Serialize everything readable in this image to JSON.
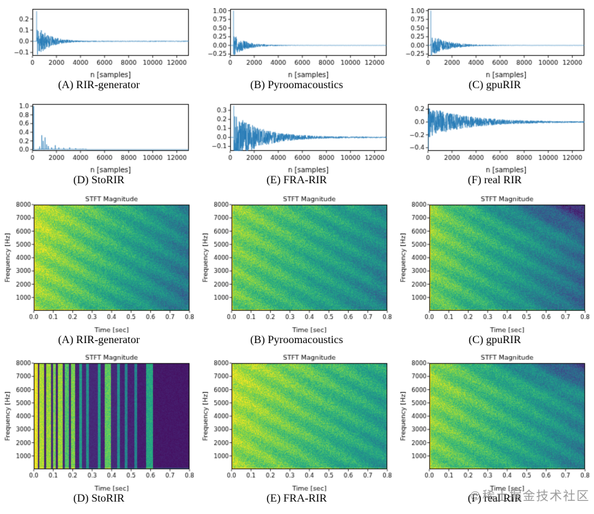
{
  "figure": {
    "background": "#ffffff"
  },
  "watermark": {
    "icon": "©",
    "text": "稀土掘金技术社区"
  },
  "chart_data": [
    {
      "type": "line",
      "kind": "waveform",
      "caption": "(A) RIR-generator",
      "xlabel": "n [samples]",
      "xlim": [
        0,
        13000
      ],
      "xticks": [
        0,
        2000,
        4000,
        6000,
        8000,
        10000,
        12000
      ],
      "xtick_labels": [
        "0",
        "2000",
        "4000",
        "6000",
        "8000",
        "10000",
        "12000"
      ],
      "ylim": [
        -0.13,
        0.29
      ],
      "yticks": [
        -0.1,
        0.0,
        0.1,
        0.2
      ],
      "ytick_labels": [
        "−0.1",
        "0.0",
        "0.1",
        "0.2"
      ],
      "line_color": "#1f77b4",
      "signal": {
        "onset": 350,
        "spike": 0.27,
        "noise_amp": 0.15,
        "tau": 1000,
        "seed": 11
      }
    },
    {
      "type": "line",
      "kind": "waveform",
      "caption": "(B) Pyroomacoustics",
      "xlabel": "n [samples]",
      "xlim": [
        0,
        13000
      ],
      "xticks": [
        0,
        2000,
        4000,
        6000,
        8000,
        10000,
        12000
      ],
      "xtick_labels": [
        "0",
        "2000",
        "4000",
        "6000",
        "8000",
        "10000",
        "12000"
      ],
      "ylim": [
        -0.3,
        1.05
      ],
      "yticks": [
        -0.25,
        0.0,
        0.25,
        0.5,
        0.75,
        1.0
      ],
      "ytick_labels": [
        "−0.25",
        "0.00",
        "0.25",
        "0.50",
        "0.75",
        "1.00"
      ],
      "line_color": "#1f77b4",
      "signal": {
        "onset": 280,
        "spike": 1.0,
        "noise_amp": 0.3,
        "tau": 1100,
        "seed": 12
      }
    },
    {
      "type": "line",
      "kind": "waveform",
      "caption": "(C) gpuRIR",
      "xlabel": "n [samples]",
      "xlim": [
        0,
        13000
      ],
      "xticks": [
        0,
        2000,
        4000,
        6000,
        8000,
        10000,
        12000
      ],
      "xtick_labels": [
        "0",
        "2000",
        "4000",
        "6000",
        "8000",
        "10000",
        "12000"
      ],
      "ylim": [
        -0.3,
        1.05
      ],
      "yticks": [
        -0.25,
        0.0,
        0.25,
        0.5,
        0.75,
        1.0
      ],
      "ytick_labels": [
        "−0.25",
        "0.00",
        "0.25",
        "0.50",
        "0.75",
        "1.00"
      ],
      "line_color": "#1f77b4",
      "signal": {
        "onset": 240,
        "spike": 1.0,
        "noise_amp": 0.32,
        "tau": 1400,
        "seed": 13
      }
    },
    {
      "type": "line",
      "kind": "waveform",
      "caption": "(D) StoRIR",
      "xlabel": "n [samples]",
      "xlim": [
        0,
        13000
      ],
      "xticks": [
        0,
        2000,
        4000,
        6000,
        8000,
        10000,
        12000
      ],
      "xtick_labels": [
        "0",
        "2000",
        "4000",
        "6000",
        "8000",
        "10000",
        "12000"
      ],
      "ylim": [
        -0.03,
        1.05
      ],
      "yticks": [
        0.0,
        0.2,
        0.4,
        0.6,
        0.8,
        1.0
      ],
      "ytick_labels": [
        "0.0",
        "0.2",
        "0.4",
        "0.6",
        "0.8",
        "1.0"
      ],
      "line_color": "#1f77b4",
      "signal": {
        "seed": 14,
        "spikes": [
          [
            110,
            1.0
          ],
          [
            600,
            0.07
          ],
          [
            780,
            0.33
          ],
          [
            900,
            0.2
          ],
          [
            1050,
            0.28
          ],
          [
            1180,
            0.12
          ],
          [
            1320,
            0.08
          ],
          [
            1600,
            0.05
          ],
          [
            1900,
            0.1
          ],
          [
            2200,
            0.05
          ],
          [
            2600,
            0.04
          ],
          [
            3100,
            0.05
          ],
          [
            3600,
            0.03
          ],
          [
            4200,
            0.02
          ]
        ]
      }
    },
    {
      "type": "line",
      "kind": "waveform",
      "caption": "(E) FRA-RIR",
      "xlabel": "n [samples]",
      "xlim": [
        0,
        13000
      ],
      "xticks": [
        0,
        2000,
        4000,
        6000,
        8000,
        10000,
        12000
      ],
      "xtick_labels": [
        "0",
        "2000",
        "4000",
        "6000",
        "8000",
        "10000",
        "12000"
      ],
      "ylim": [
        -0.15,
        0.37
      ],
      "yticks": [
        -0.1,
        0.0,
        0.1,
        0.2,
        0.3
      ],
      "ytick_labels": [
        "−0.1",
        "0.0",
        "0.1",
        "0.2",
        "0.3"
      ],
      "line_color": "#1f77b4",
      "signal": {
        "onset": 300,
        "spike": 0.35,
        "noise_amp": 0.27,
        "tau": 2200,
        "floor": 0.005,
        "seed": 15
      }
    },
    {
      "type": "line",
      "kind": "waveform",
      "caption": "(F) real RIR",
      "xlabel": "n [samples]",
      "xlim": [
        0,
        13000
      ],
      "xticks": [
        0,
        2000,
        4000,
        6000,
        8000,
        10000,
        12000
      ],
      "xtick_labels": [
        "0",
        "2000",
        "4000",
        "6000",
        "8000",
        "10000",
        "12000"
      ],
      "ylim": [
        -0.45,
        0.28
      ],
      "yticks": [
        -0.4,
        -0.2,
        0.0,
        0.2
      ],
      "ytick_labels": [
        "−0.4",
        "−0.2",
        "0.0",
        "0.2"
      ],
      "line_color": "#1f77b4",
      "signal": {
        "onset": 20,
        "spike": -0.43,
        "spike_n": 40,
        "noise_amp": 0.24,
        "tau": 3200,
        "floor": 0.006,
        "seed": 16
      }
    },
    {
      "type": "heatmap",
      "kind": "spectrogram",
      "caption": "(A) RIR-generator",
      "title": "STFT Magnitude",
      "xlabel": "Time [sec]",
      "ylabel": "Frequency [Hz]",
      "xlim": [
        0,
        0.8
      ],
      "ylim": [
        0,
        8000
      ],
      "xticks": [
        0,
        0.1,
        0.2,
        0.3,
        0.4,
        0.5,
        0.6,
        0.7,
        0.8
      ],
      "xtick_labels": [
        "0.0",
        "0.1",
        "0.2",
        "0.3",
        "0.4",
        "0.5",
        "0.6",
        "0.7",
        "0.8"
      ],
      "yticks": [
        1000,
        2000,
        3000,
        4000,
        5000,
        6000,
        7000,
        8000
      ],
      "ytick_labels": [
        "1000",
        "2000",
        "3000",
        "4000",
        "5000",
        "6000",
        "7000",
        "8000"
      ],
      "heat": {
        "style": "decay",
        "colormap": "viridis",
        "base_left": 0.88,
        "base_right": 0.4,
        "seed": 101
      }
    },
    {
      "type": "heatmap",
      "kind": "spectrogram",
      "caption": "(B) Pyroomacoustics",
      "title": "STFT Magnitude",
      "xlabel": "Time [sec]",
      "ylabel": "Frequency [Hz]",
      "xlim": [
        0,
        0.8
      ],
      "ylim": [
        0,
        8000
      ],
      "xticks": [
        0,
        0.1,
        0.2,
        0.3,
        0.4,
        0.5,
        0.6,
        0.7,
        0.8
      ],
      "xtick_labels": [
        "0.0",
        "0.1",
        "0.2",
        "0.3",
        "0.4",
        "0.5",
        "0.6",
        "0.7",
        "0.8"
      ],
      "yticks": [
        1000,
        2000,
        3000,
        4000,
        5000,
        6000,
        7000,
        8000
      ],
      "ytick_labels": [
        "1000",
        "2000",
        "3000",
        "4000",
        "5000",
        "6000",
        "7000",
        "8000"
      ],
      "heat": {
        "style": "decay",
        "colormap": "viridis",
        "base_left": 0.8,
        "base_right": 0.45,
        "seed": 102
      }
    },
    {
      "type": "heatmap",
      "kind": "spectrogram",
      "caption": "(C) gpuRIR",
      "title": "STFT Magnitude",
      "xlabel": "Time [sec]",
      "ylabel": "Frequency [Hz]",
      "xlim": [
        0,
        0.8
      ],
      "ylim": [
        0,
        8000
      ],
      "xticks": [
        0,
        0.1,
        0.2,
        0.3,
        0.4,
        0.5,
        0.6,
        0.7,
        0.8
      ],
      "xtick_labels": [
        "0.0",
        "0.1",
        "0.2",
        "0.3",
        "0.4",
        "0.5",
        "0.6",
        "0.7",
        "0.8"
      ],
      "yticks": [
        1000,
        2000,
        3000,
        4000,
        5000,
        6000,
        7000,
        8000
      ],
      "ytick_labels": [
        "1000",
        "2000",
        "3000",
        "4000",
        "5000",
        "6000",
        "7000",
        "8000"
      ],
      "heat": {
        "style": "decay",
        "colormap": "viridis",
        "base_left": 0.8,
        "base_right": 0.35,
        "top_dark": true,
        "seed": 103
      }
    },
    {
      "type": "heatmap",
      "kind": "spectrogram",
      "caption": "(D) StoRIR",
      "title": "STFT Magnitude",
      "xlabel": "Time [sec]",
      "ylabel": "Frequency [Hz]",
      "xlim": [
        0,
        0.8
      ],
      "ylim": [
        0,
        8000
      ],
      "xticks": [
        0,
        0.1,
        0.2,
        0.3,
        0.4,
        0.5,
        0.6,
        0.7,
        0.8
      ],
      "xtick_labels": [
        "0.0",
        "0.1",
        "0.2",
        "0.3",
        "0.4",
        "0.5",
        "0.6",
        "0.7",
        "0.8"
      ],
      "yticks": [
        1000,
        2000,
        3000,
        4000,
        5000,
        6000,
        7000,
        8000
      ],
      "ytick_labels": [
        "1000",
        "2000",
        "3000",
        "4000",
        "5000",
        "6000",
        "7000",
        "8000"
      ],
      "heat": {
        "style": "stripes",
        "colormap": "viridis",
        "seed": 104,
        "stripes": [
          [
            0.0,
            0.018,
            0.97
          ],
          [
            0.018,
            0.028,
            0.1
          ],
          [
            0.028,
            0.052,
            0.88
          ],
          [
            0.052,
            0.062,
            0.1
          ],
          [
            0.062,
            0.088,
            0.85
          ],
          [
            0.088,
            0.098,
            0.12
          ],
          [
            0.098,
            0.112,
            0.8
          ],
          [
            0.112,
            0.122,
            0.1
          ],
          [
            0.122,
            0.148,
            0.85
          ],
          [
            0.148,
            0.158,
            0.1
          ],
          [
            0.158,
            0.178,
            0.72
          ],
          [
            0.178,
            0.192,
            0.1
          ],
          [
            0.192,
            0.213,
            0.8
          ],
          [
            0.213,
            0.232,
            0.1
          ],
          [
            0.232,
            0.248,
            0.55
          ],
          [
            0.248,
            0.268,
            0.12
          ],
          [
            0.268,
            0.283,
            0.5
          ],
          [
            0.283,
            0.328,
            0.12
          ],
          [
            0.328,
            0.343,
            0.55
          ],
          [
            0.343,
            0.363,
            0.1
          ],
          [
            0.363,
            0.395,
            0.75
          ],
          [
            0.395,
            0.428,
            0.12
          ],
          [
            0.428,
            0.443,
            0.5
          ],
          [
            0.443,
            0.468,
            0.1
          ],
          [
            0.468,
            0.483,
            0.45
          ],
          [
            0.483,
            0.518,
            0.1
          ],
          [
            0.518,
            0.533,
            0.45
          ],
          [
            0.533,
            0.578,
            0.08
          ],
          [
            0.578,
            0.615,
            0.6
          ],
          [
            0.615,
            0.801,
            0.07
          ]
        ]
      }
    },
    {
      "type": "heatmap",
      "kind": "spectrogram",
      "caption": "(E) FRA-RIR",
      "title": "STFT Magnitude",
      "xlabel": "Time [sec]",
      "ylabel": "Frequency [Hz]",
      "xlim": [
        0,
        0.8
      ],
      "ylim": [
        0,
        8000
      ],
      "xticks": [
        0,
        0.1,
        0.2,
        0.3,
        0.4,
        0.5,
        0.6,
        0.7,
        0.8
      ],
      "xtick_labels": [
        "0.0",
        "0.1",
        "0.2",
        "0.3",
        "0.4",
        "0.5",
        "0.6",
        "0.7",
        "0.8"
      ],
      "yticks": [
        1000,
        2000,
        3000,
        4000,
        5000,
        6000,
        7000,
        8000
      ],
      "ytick_labels": [
        "1000",
        "2000",
        "3000",
        "4000",
        "5000",
        "6000",
        "7000",
        "8000"
      ],
      "heat": {
        "style": "decay",
        "colormap": "viridis",
        "base_left": 0.88,
        "base_right": 0.55,
        "seed": 105
      }
    },
    {
      "type": "heatmap",
      "kind": "spectrogram",
      "caption": "(F) real RIR",
      "title": "STFT Magnitude",
      "xlabel": "Time [sec]",
      "ylabel": "Frequency [Hz]",
      "xlim": [
        0,
        0.8
      ],
      "ylim": [
        0,
        8000
      ],
      "xticks": [
        0,
        0.1,
        0.2,
        0.3,
        0.4,
        0.5,
        0.6,
        0.7,
        0.8
      ],
      "xtick_labels": [
        "0.0",
        "0.1",
        "0.2",
        "0.3",
        "0.4",
        "0.5",
        "0.6",
        "0.7",
        "0.8"
      ],
      "yticks": [
        1000,
        2000,
        3000,
        4000,
        5000,
        6000,
        7000,
        8000
      ],
      "ytick_labels": [
        "1000",
        "2000",
        "3000",
        "4000",
        "5000",
        "6000",
        "7000",
        "8000"
      ],
      "heat": {
        "style": "decay",
        "colormap": "viridis",
        "base_left": 0.82,
        "base_right": 0.45,
        "top_dark": true,
        "seed": 106
      }
    }
  ]
}
